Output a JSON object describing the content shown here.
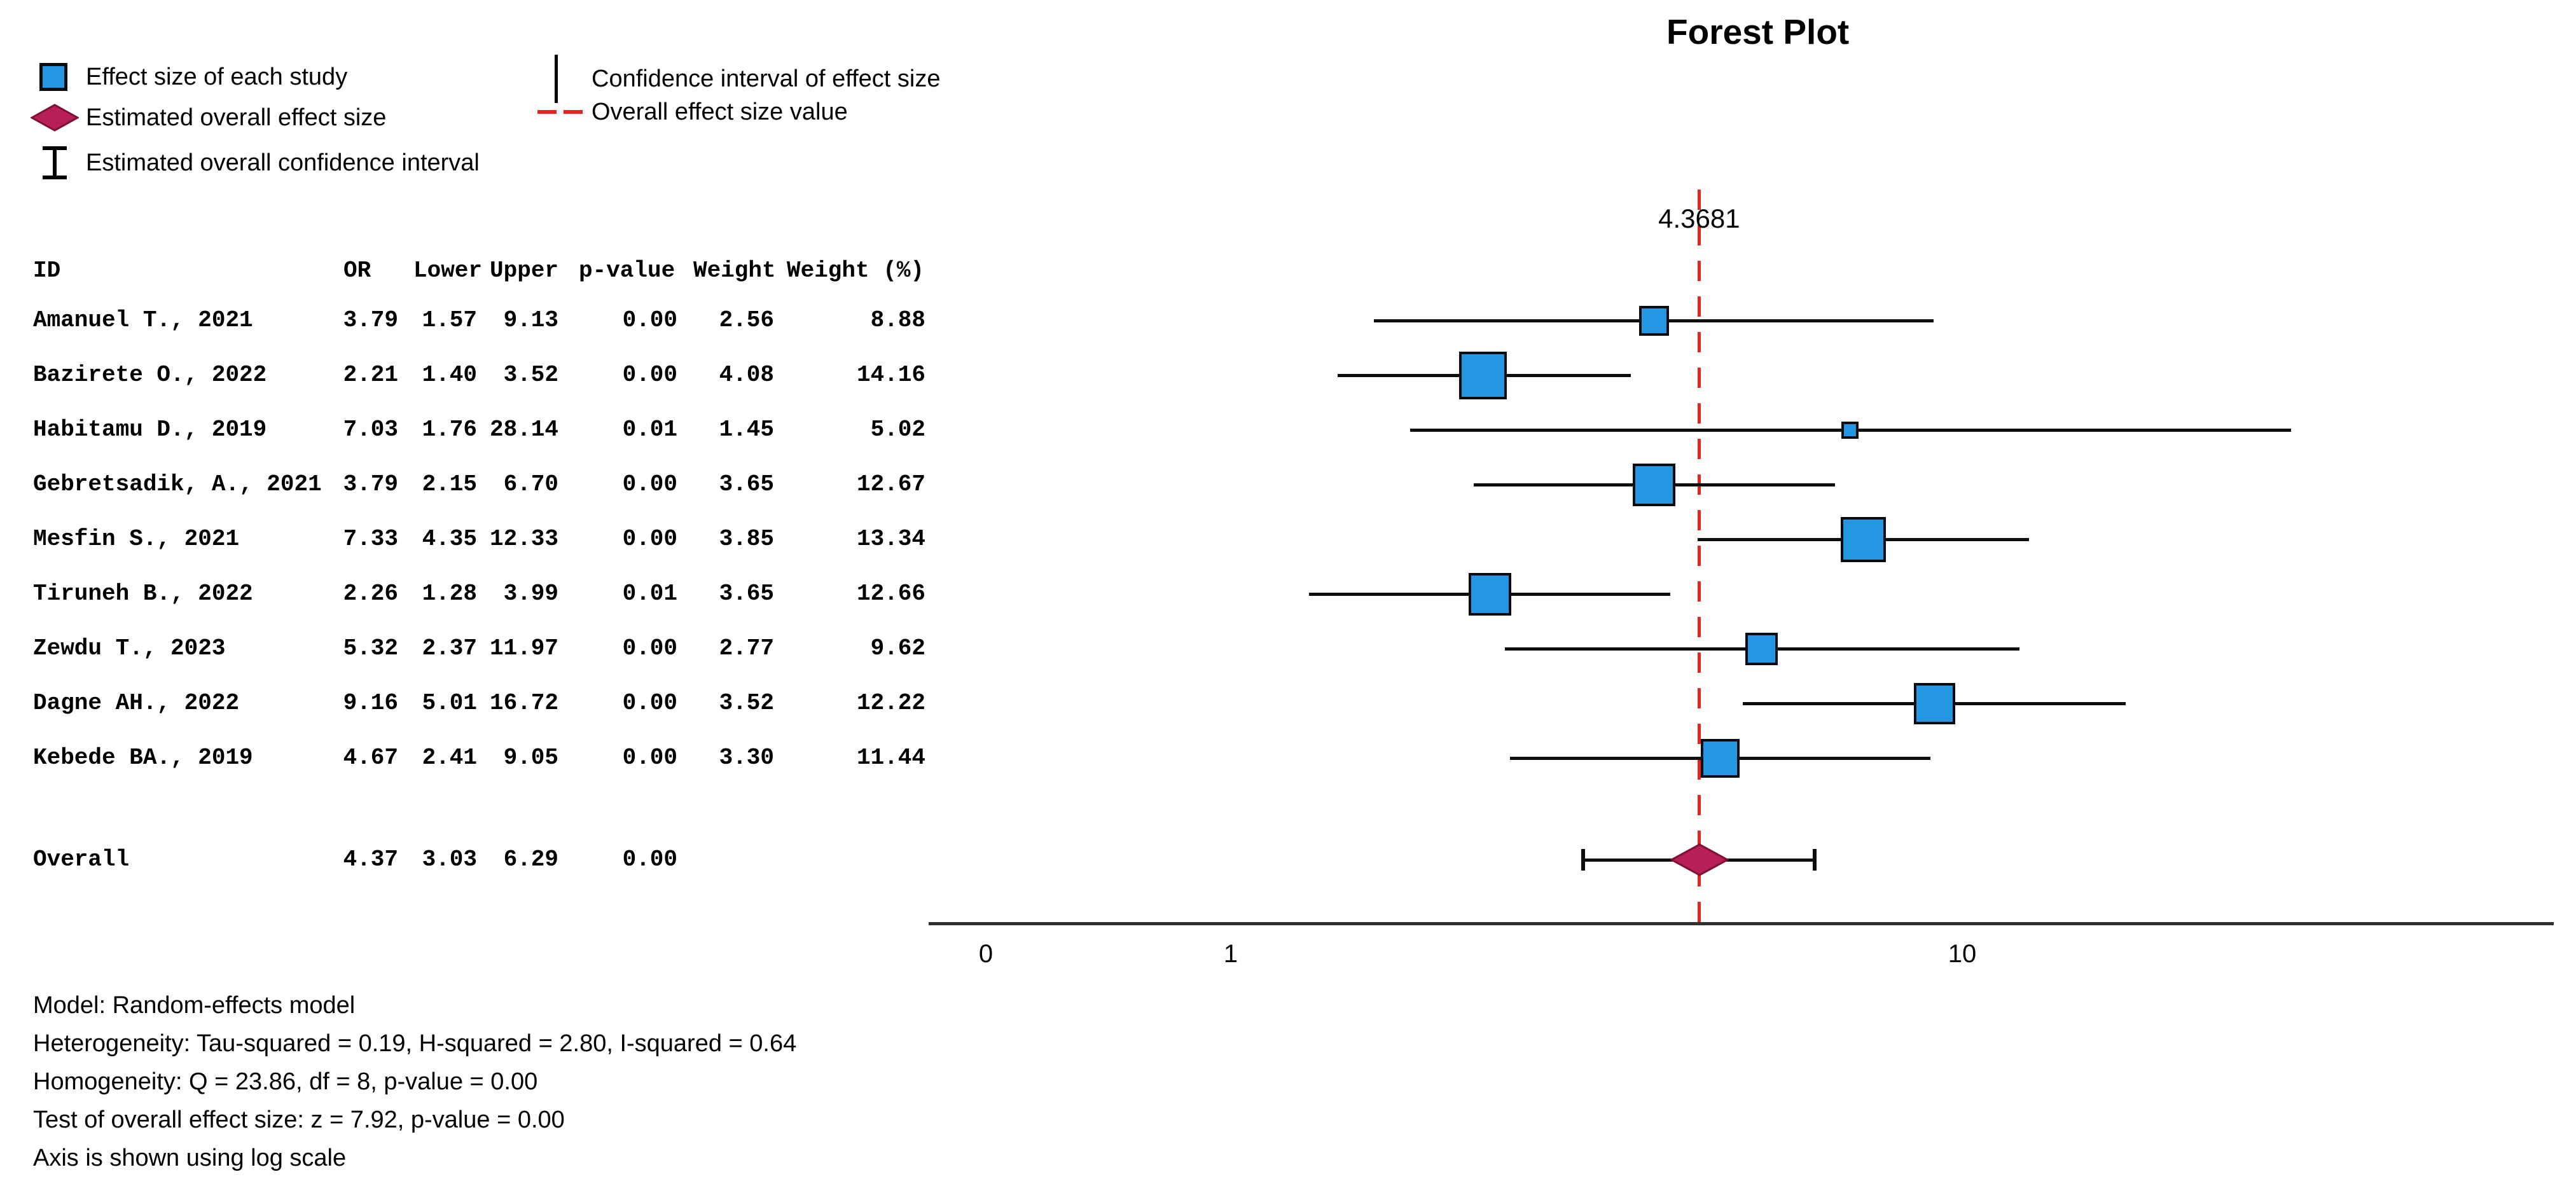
{
  "title": "Forest Plot",
  "legend": {
    "left": [
      {
        "icon": "study-square-icon",
        "label": "Effect size of each study"
      },
      {
        "icon": "overall-diamond-icon",
        "label": "Estimated overall effect size"
      },
      {
        "icon": "overall-ci-ibeam-icon",
        "label": "Estimated overall confidence interval"
      }
    ],
    "right": [
      {
        "icon": "ci-line-icon",
        "label": "Confidence interval of effect size"
      },
      {
        "icon": "dashed-line-icon",
        "label": "Overall effect size value"
      }
    ]
  },
  "table": {
    "headers": [
      "ID",
      "OR",
      "Lower",
      "Upper",
      "p-value",
      "Weight",
      "Weight (%)"
    ]
  },
  "chart_data": {
    "type": "forest",
    "x_axis": {
      "scale": "log",
      "ticks": [
        "0",
        "1",
        "10"
      ]
    },
    "overall_line_label": "4.3681",
    "overall_line_value": 4.3681,
    "studies": [
      {
        "id": "Amanuel T., 2021",
        "or": "3.79",
        "lower": "1.57",
        "upper": "9.13",
        "p": "0.00",
        "weight": "2.56",
        "weight_pct": "8.88"
      },
      {
        "id": "Bazirete O., 2022",
        "or": "2.21",
        "lower": "1.40",
        "upper": "3.52",
        "p": "0.00",
        "weight": "4.08",
        "weight_pct": "14.16"
      },
      {
        "id": "Habitamu D., 2019",
        "or": "7.03",
        "lower": "1.76",
        "upper": "28.14",
        "p": "0.01",
        "weight": "1.45",
        "weight_pct": "5.02"
      },
      {
        "id": "Gebretsadik, A., 2021",
        "or": "3.79",
        "lower": "2.15",
        "upper": "6.70",
        "p": "0.00",
        "weight": "3.65",
        "weight_pct": "12.67"
      },
      {
        "id": "Mesfin S., 2021",
        "or": "7.33",
        "lower": "4.35",
        "upper": "12.33",
        "p": "0.00",
        "weight": "3.85",
        "weight_pct": "13.34"
      },
      {
        "id": "Tiruneh B., 2022",
        "or": "2.26",
        "lower": "1.28",
        "upper": "3.99",
        "p": "0.01",
        "weight": "3.65",
        "weight_pct": "12.66"
      },
      {
        "id": "Zewdu T., 2023",
        "or": "5.32",
        "lower": "2.37",
        "upper": "11.97",
        "p": "0.00",
        "weight": "2.77",
        "weight_pct": "9.62"
      },
      {
        "id": "Dagne AH., 2022",
        "or": "9.16",
        "lower": "5.01",
        "upper": "16.72",
        "p": "0.00",
        "weight": "3.52",
        "weight_pct": "12.22"
      },
      {
        "id": "Kebede BA., 2019",
        "or": "4.67",
        "lower": "2.41",
        "upper": "9.05",
        "p": "0.00",
        "weight": "3.30",
        "weight_pct": "11.44"
      }
    ],
    "overall": {
      "id": "Overall",
      "or": "4.37",
      "lower": "3.03",
      "upper": "6.29",
      "p": "0.00"
    }
  },
  "footnotes": [
    "Model: Random-effects model",
    "Heterogeneity: Tau-squared = 0.19, H-squared = 2.80, I-squared = 0.64",
    "Homogeneity: Q = 23.86, df = 8, p-value = 0.00",
    "Test of overall effect size: z = 7.92, p-value = 0.00",
    "Axis is shown using log scale"
  ],
  "colors": {
    "study_marker": "#2496E4",
    "marker_border": "#0A0C10",
    "ci_line": "#0D0D0D",
    "overall_diamond": "#B81F56",
    "diamond_border": "#7E1038",
    "overall_dashed_line": "#E8221F",
    "axis": "#2F2F2F",
    "text": "#000000"
  }
}
